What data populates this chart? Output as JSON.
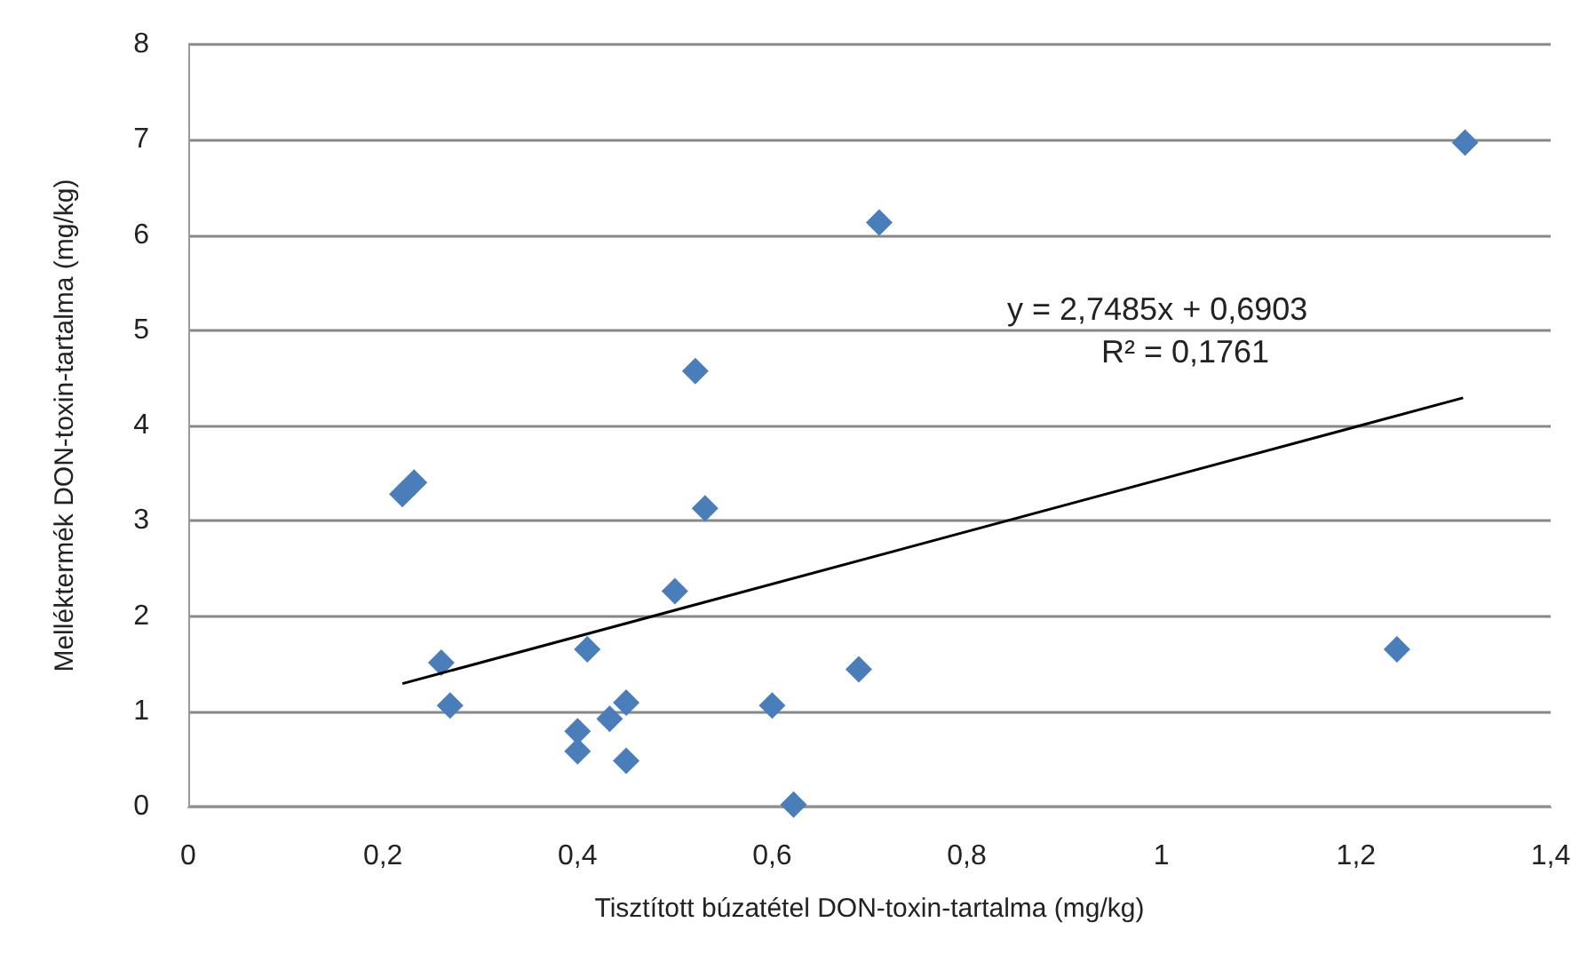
{
  "chart_data": {
    "type": "scatter",
    "xlabel": "Tisztított búzatétel DON-toxin-tartalma (mg/kg)",
    "ylabel": "Melléktermék DON-toxin-tartalma (mg/kg)",
    "series": [
      {
        "color": "#4a7ebb",
        "marker": "diamond",
        "x": [
          0.22,
          0.232,
          0.521,
          0.531,
          0.5,
          0.26,
          0.269,
          0.41,
          0.4,
          0.4,
          0.433,
          0.45,
          0.45,
          0.6,
          0.622,
          0.689,
          0.71,
          1.312,
          1.242
        ],
        "values": [
          3.28,
          3.4,
          4.57,
          3.13,
          2.26,
          1.51,
          1.06,
          1.65,
          0.79,
          0.58,
          0.92,
          1.09,
          0.48,
          1.06,
          0.02,
          1.44,
          6.13,
          6.97,
          1.65
        ]
      },
      {
        "type": "line",
        "color": "#000000",
        "marker": "none",
        "x": [
          0.22,
          1.31
        ],
        "values": [
          1.29,
          4.29
        ]
      }
    ],
    "xlim": [
      0,
      1.4
    ],
    "xticks": [
      0,
      {
        "value": 0.2,
        "label": "0,2"
      },
      {
        "value": 0.4,
        "label": "0,4"
      },
      {
        "value": 0.6,
        "label": "0,6"
      },
      {
        "value": 0.8,
        "label": "0,8"
      },
      1,
      {
        "value": 1.2,
        "label": "1,2"
      },
      {
        "value": 1.4,
        "label": "1,4"
      }
    ],
    "ylim": [
      0,
      8
    ],
    "yticks": [
      0,
      1,
      2,
      3,
      4,
      5,
      6,
      7,
      8
    ],
    "annotations": [
      "y = 2,7485x + 0,6903",
      "R² = 0,1761"
    ],
    "grid": "y"
  }
}
